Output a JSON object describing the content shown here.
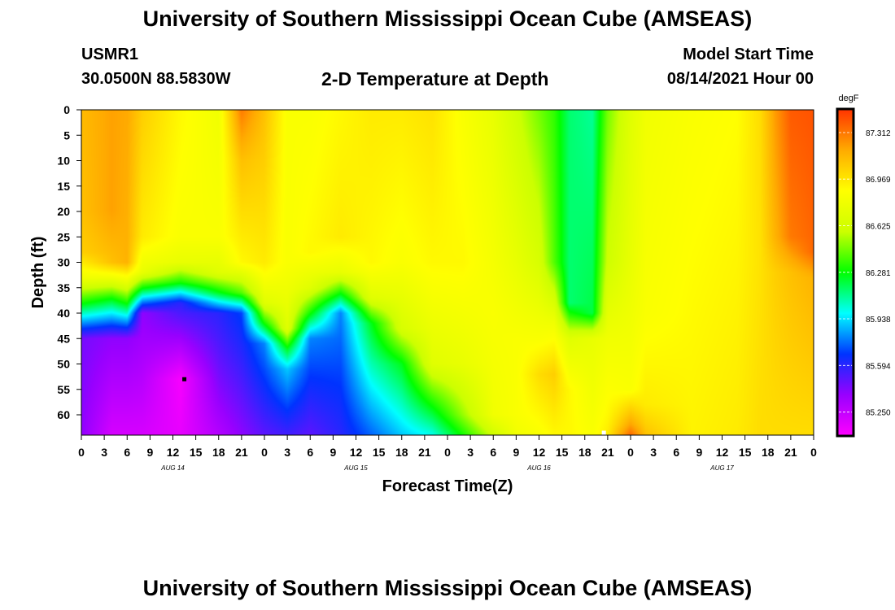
{
  "header": {
    "title": "University of Southern Mississippi Ocean Cube (AMSEAS)",
    "station": "USMR1",
    "coordinates": "30.0500N  88.5830W",
    "subtitle": "2-D Temperature at Depth",
    "run_label": "Model Start Time",
    "run_value": "08/14/2021 Hour 00"
  },
  "footer": {
    "title": "University of Southern Mississippi Ocean Cube (AMSEAS)"
  },
  "chart_data": {
    "type": "heatmap",
    "xlabel": "Forecast Time(Z)",
    "ylabel": "Depth (ft)",
    "x_ticks": [
      "0",
      "3",
      "6",
      "9",
      "12",
      "15",
      "18",
      "21",
      "0",
      "3",
      "6",
      "9",
      "12",
      "15",
      "18",
      "21",
      "0",
      "3",
      "6",
      "9",
      "12",
      "15",
      "18",
      "21",
      "0",
      "3",
      "6",
      "9",
      "12",
      "15",
      "18",
      "21",
      "0"
    ],
    "x_hours_range": [
      0,
      96
    ],
    "day_labels": [
      {
        "label": "AUG 14",
        "hour": 12
      },
      {
        "label": "AUG 15",
        "hour": 36
      },
      {
        "label": "AUG 16",
        "hour": 60
      },
      {
        "label": "AUG 17",
        "hour": 84
      }
    ],
    "y_ticks": [
      0,
      5,
      10,
      15,
      20,
      25,
      30,
      35,
      40,
      45,
      50,
      55,
      60
    ],
    "ylim": [
      0,
      64
    ],
    "y_inverted": true,
    "colorbar": {
      "unit": "degF",
      "min": 85.08,
      "max": 87.48,
      "labels": [
        "87.312",
        "86.969",
        "86.625",
        "86.281",
        "85.938",
        "85.594",
        "85.250"
      ],
      "colors": [
        "#ff00ff",
        "#9900ff",
        "#0033ff",
        "#00ffff",
        "#00ff00",
        "#ccff00",
        "#ffff00",
        "#ffaa00",
        "#ff3300"
      ]
    },
    "profiles": [
      {
        "hour": 0,
        "depth": [
          0,
          20,
          28,
          33,
          38,
          45,
          64
        ],
        "temp": [
          87.12,
          87.1,
          87.05,
          86.8,
          86.3,
          85.45,
          85.4
        ]
      },
      {
        "hour": 4,
        "depth": [
          0,
          20,
          30,
          33,
          37,
          45,
          64
        ],
        "temp": [
          87.2,
          87.2,
          87.1,
          86.8,
          86.3,
          85.4,
          85.2
        ]
      },
      {
        "hour": 6,
        "depth": [
          0,
          30,
          34,
          38,
          45,
          64
        ],
        "temp": [
          87.18,
          87.15,
          86.75,
          86.3,
          85.4,
          85.2
        ]
      },
      {
        "hour": 8,
        "depth": [
          0,
          25,
          32,
          35,
          40,
          64
        ],
        "temp": [
          87.05,
          86.95,
          86.75,
          86.3,
          85.4,
          85.2
        ]
      },
      {
        "hour": 13,
        "depth": [
          0,
          25,
          30,
          34,
          38,
          53,
          64
        ],
        "temp": [
          86.9,
          86.85,
          86.75,
          86.3,
          85.6,
          85.1,
          85.15
        ]
      },
      {
        "hour": 18,
        "depth": [
          0,
          25,
          32,
          36,
          40,
          64
        ],
        "temp": [
          86.8,
          86.85,
          86.7,
          86.25,
          85.6,
          85.3
        ]
      },
      {
        "hour": 21,
        "depth": [
          0,
          10,
          30,
          36,
          40,
          64
        ],
        "temp": [
          87.3,
          87.1,
          86.9,
          86.4,
          85.7,
          85.4
        ]
      },
      {
        "hour": 24,
        "depth": [
          0,
          30,
          38,
          42,
          46,
          64
        ],
        "temp": [
          87.1,
          86.95,
          86.7,
          86.3,
          85.8,
          85.5
        ]
      },
      {
        "hour": 27,
        "depth": [
          0,
          30,
          43,
          47,
          51,
          64
        ],
        "temp": [
          86.85,
          86.85,
          86.7,
          86.25,
          85.9,
          85.55
        ]
      },
      {
        "hour": 30,
        "depth": [
          0,
          28,
          35,
          40,
          45,
          64
        ],
        "temp": [
          86.85,
          86.9,
          86.7,
          86.3,
          85.8,
          85.5
        ]
      },
      {
        "hour": 34,
        "depth": [
          0,
          25,
          32,
          36,
          40,
          64
        ],
        "temp": [
          86.9,
          86.95,
          86.75,
          86.3,
          85.8,
          85.6
        ]
      },
      {
        "hour": 38,
        "depth": [
          0,
          30,
          37,
          42,
          64
        ],
        "temp": [
          86.95,
          86.9,
          86.7,
          86.25,
          85.75
        ]
      },
      {
        "hour": 42,
        "depth": [
          0,
          30,
          43,
          50,
          64
        ],
        "temp": [
          86.95,
          86.85,
          86.65,
          86.25,
          85.9
        ]
      },
      {
        "hour": 46,
        "depth": [
          0,
          30,
          50,
          58,
          64
        ],
        "temp": [
          86.98,
          86.9,
          86.7,
          86.3,
          86.0
        ]
      },
      {
        "hour": 50,
        "depth": [
          0,
          30,
          50,
          60,
          64
        ],
        "temp": [
          86.85,
          86.9,
          86.75,
          86.5,
          86.3
        ]
      },
      {
        "hour": 54,
        "depth": [
          0,
          40,
          60,
          64
        ],
        "temp": [
          86.75,
          86.85,
          86.8,
          86.6
        ]
      },
      {
        "hour": 57,
        "depth": [
          0,
          30,
          45,
          60,
          64
        ],
        "temp": [
          86.6,
          86.75,
          86.85,
          86.85,
          86.8
        ]
      },
      {
        "hour": 60,
        "depth": [
          0,
          30,
          45,
          52,
          64
        ],
        "temp": [
          86.45,
          86.65,
          86.85,
          87.0,
          86.85
        ]
      },
      {
        "hour": 62,
        "depth": [
          0,
          30,
          42,
          52,
          64
        ],
        "temp": [
          86.35,
          86.4,
          86.8,
          87.05,
          86.9
        ]
      },
      {
        "hour": 64,
        "depth": [
          0,
          38,
          45,
          55,
          64
        ],
        "temp": [
          86.15,
          86.15,
          86.7,
          86.9,
          86.9
        ]
      },
      {
        "hour": 67,
        "depth": [
          0,
          40,
          45,
          64
        ],
        "temp": [
          86.1,
          86.2,
          86.75,
          86.85
        ]
      },
      {
        "hour": 69,
        "depth": [
          0,
          30,
          45,
          60,
          64
        ],
        "temp": [
          86.45,
          86.6,
          86.8,
          86.9,
          86.95
        ]
      },
      {
        "hour": 72,
        "depth": [
          0,
          30,
          55,
          62,
          64
        ],
        "temp": [
          86.7,
          86.75,
          86.85,
          87.2,
          87.35
        ]
      },
      {
        "hour": 74,
        "depth": [
          0,
          40,
          58,
          64
        ],
        "temp": [
          86.8,
          86.85,
          86.95,
          87.1
        ]
      },
      {
        "hour": 80,
        "depth": [
          0,
          64
        ],
        "temp": [
          86.85,
          86.92
        ]
      },
      {
        "hour": 86,
        "depth": [
          0,
          64
        ],
        "temp": [
          86.88,
          86.95
        ]
      },
      {
        "hour": 89,
        "depth": [
          0,
          30,
          64
        ],
        "temp": [
          87.0,
          86.98,
          87.0
        ]
      },
      {
        "hour": 91,
        "depth": [
          0,
          25,
          32,
          64
        ],
        "temp": [
          87.22,
          87.15,
          87.05,
          87.0
        ]
      },
      {
        "hour": 93,
        "depth": [
          0,
          25,
          32,
          64
        ],
        "temp": [
          87.38,
          87.3,
          87.1,
          87.0
        ]
      },
      {
        "hour": 96,
        "depth": [
          0,
          28,
          33,
          64
        ],
        "temp": [
          87.4,
          87.35,
          87.15,
          87.0
        ]
      }
    ],
    "markers": [
      {
        "hour": 13.5,
        "depth": 53,
        "color": "#000000"
      },
      {
        "hour": 68.5,
        "depth": 64,
        "color": "#ffffff"
      }
    ]
  }
}
